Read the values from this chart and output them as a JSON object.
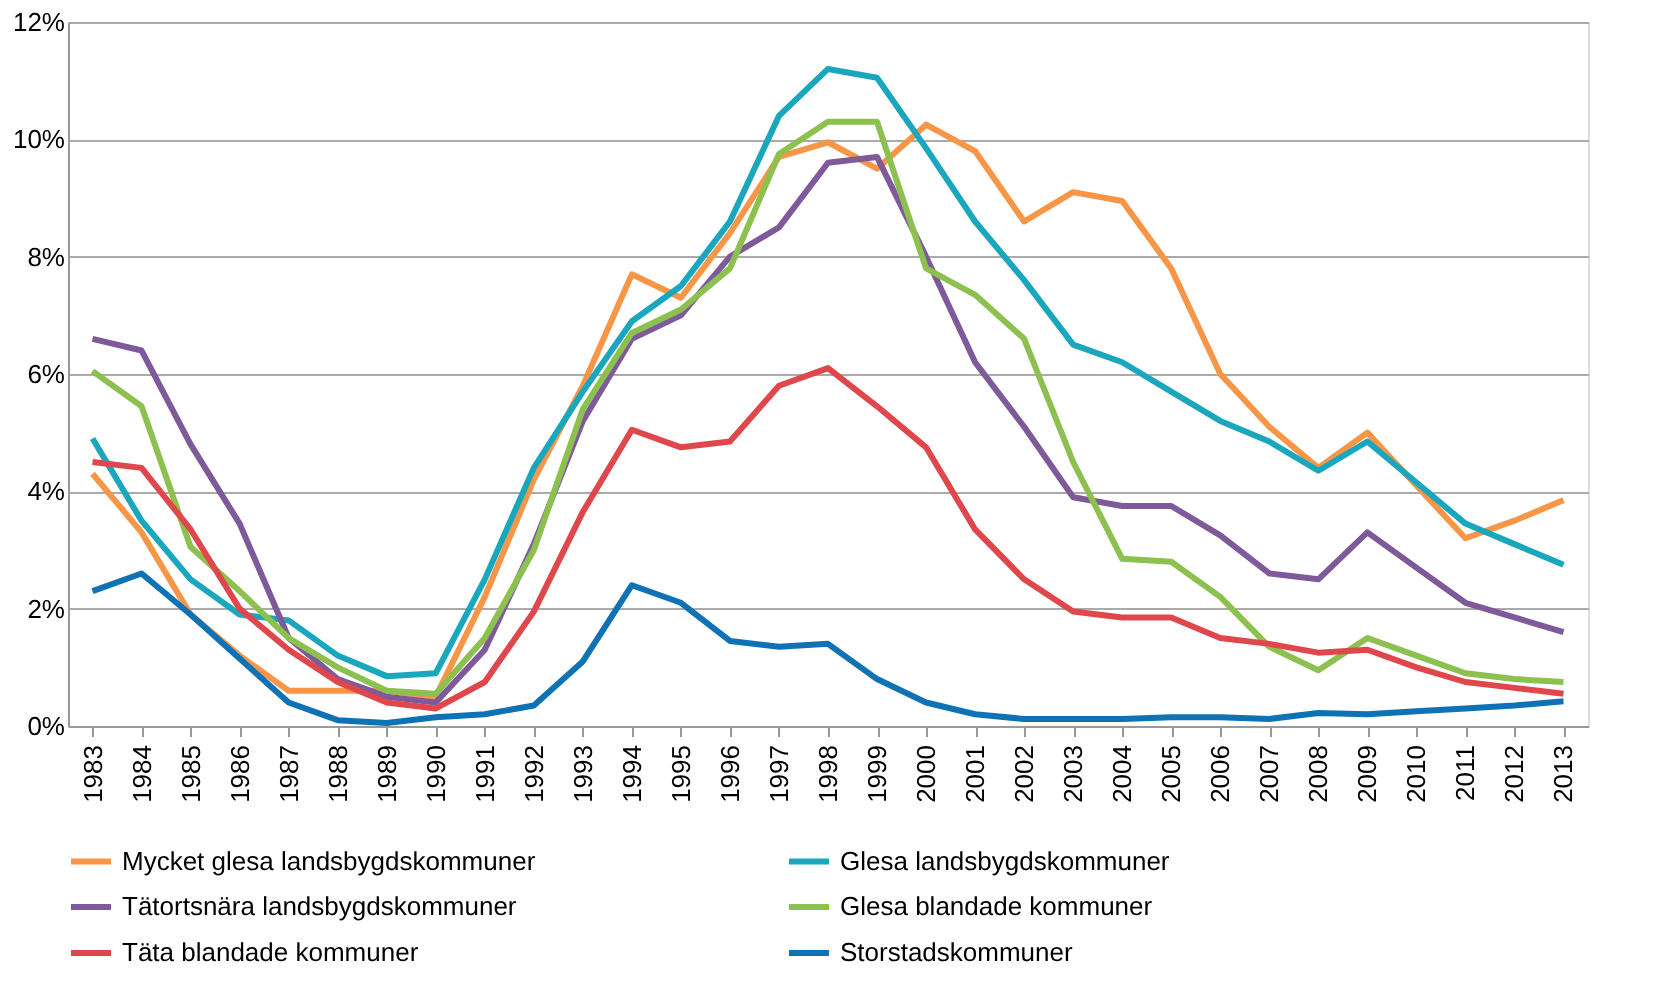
{
  "chart_data": {
    "type": "line",
    "categories": [
      "1983",
      "1984",
      "1985",
      "1986",
      "1987",
      "1988",
      "1989",
      "1990",
      "1991",
      "1992",
      "1993",
      "1994",
      "1995",
      "1996",
      "1997",
      "1998",
      "1999",
      "2000",
      "2001",
      "2002",
      "2003",
      "2004",
      "2005",
      "2006",
      "2007",
      "2008",
      "2009",
      "2010",
      "2011",
      "2012",
      "2013"
    ],
    "ylim": [
      0,
      12
    ],
    "yticks": [
      {
        "value": 0,
        "label": "0%"
      },
      {
        "value": 2,
        "label": "2%"
      },
      {
        "value": 4,
        "label": "4%"
      },
      {
        "value": 6,
        "label": "6%"
      },
      {
        "value": 8,
        "label": "8%"
      },
      {
        "value": 10,
        "label": "10%"
      },
      {
        "value": 12,
        "label": "12%"
      }
    ],
    "grid": "y",
    "legend": "bottom",
    "marker": "none",
    "line_style": "solid",
    "series": [
      {
        "name": "Mycket glesa landsbygdskommuner",
        "color": "#f79646",
        "values": [
          4.3,
          3.3,
          1.9,
          1.2,
          0.6,
          0.6,
          0.6,
          0.5,
          2.2,
          4.2,
          5.8,
          7.7,
          7.3,
          8.4,
          9.7,
          9.95,
          9.5,
          10.25,
          9.8,
          8.6,
          9.1,
          8.95,
          7.8,
          6.0,
          5.1,
          4.4,
          5.0,
          4.1,
          3.2,
          3.5,
          3.85
        ]
      },
      {
        "name": "Glesa landsbygdskommuner",
        "color": "#1aa7bd",
        "values": [
          4.9,
          3.5,
          2.5,
          1.9,
          1.8,
          1.2,
          0.85,
          0.9,
          2.5,
          4.4,
          5.7,
          6.9,
          7.5,
          8.6,
          10.4,
          11.2,
          11.05,
          9.85,
          8.6,
          7.6,
          6.5,
          6.2,
          5.7,
          5.2,
          4.85,
          4.35,
          4.85,
          4.15,
          3.45,
          3.1,
          2.75
        ]
      },
      {
        "name": "Tätortsnära landsbygdskommuner",
        "color": "#7f5a9a",
        "values": [
          6.6,
          6.4,
          4.8,
          3.45,
          1.5,
          0.8,
          0.5,
          0.4,
          1.3,
          3.1,
          5.2,
          6.6,
          7.0,
          8.0,
          8.5,
          9.6,
          9.7,
          8.0,
          6.2,
          5.1,
          3.9,
          3.75,
          3.75,
          3.25,
          2.6,
          2.5,
          3.3,
          2.7,
          2.1,
          1.85,
          1.6
        ]
      },
      {
        "name": "Glesa blandade kommuner",
        "color": "#8cc04f",
        "values": [
          6.05,
          5.45,
          3.05,
          2.3,
          1.5,
          1.0,
          0.6,
          0.55,
          1.5,
          3.0,
          5.4,
          6.7,
          7.1,
          7.8,
          9.75,
          10.3,
          10.3,
          7.8,
          7.35,
          6.6,
          4.5,
          2.85,
          2.8,
          2.2,
          1.35,
          0.95,
          1.5,
          1.2,
          0.9,
          0.8,
          0.75
        ]
      },
      {
        "name": "Täta blandade kommuner",
        "color": "#e0474c",
        "values": [
          4.5,
          4.4,
          3.35,
          2.0,
          1.3,
          0.75,
          0.4,
          0.3,
          0.75,
          1.95,
          3.65,
          5.05,
          4.75,
          4.85,
          5.8,
          6.1,
          5.45,
          4.75,
          3.35,
          2.5,
          1.95,
          1.85,
          1.85,
          1.5,
          1.4,
          1.25,
          1.3,
          1.0,
          0.75,
          0.65,
          0.55
        ]
      },
      {
        "name": "Storstadskommuner",
        "color": "#0e72b5",
        "values": [
          2.3,
          2.6,
          1.9,
          1.15,
          0.4,
          0.1,
          0.05,
          0.15,
          0.2,
          0.35,
          1.1,
          2.4,
          2.1,
          1.45,
          1.35,
          1.4,
          0.8,
          0.4,
          0.2,
          0.12,
          0.12,
          0.12,
          0.15,
          0.15,
          0.12,
          0.22,
          0.2,
          0.25,
          0.3,
          0.35,
          0.42
        ]
      }
    ]
  }
}
